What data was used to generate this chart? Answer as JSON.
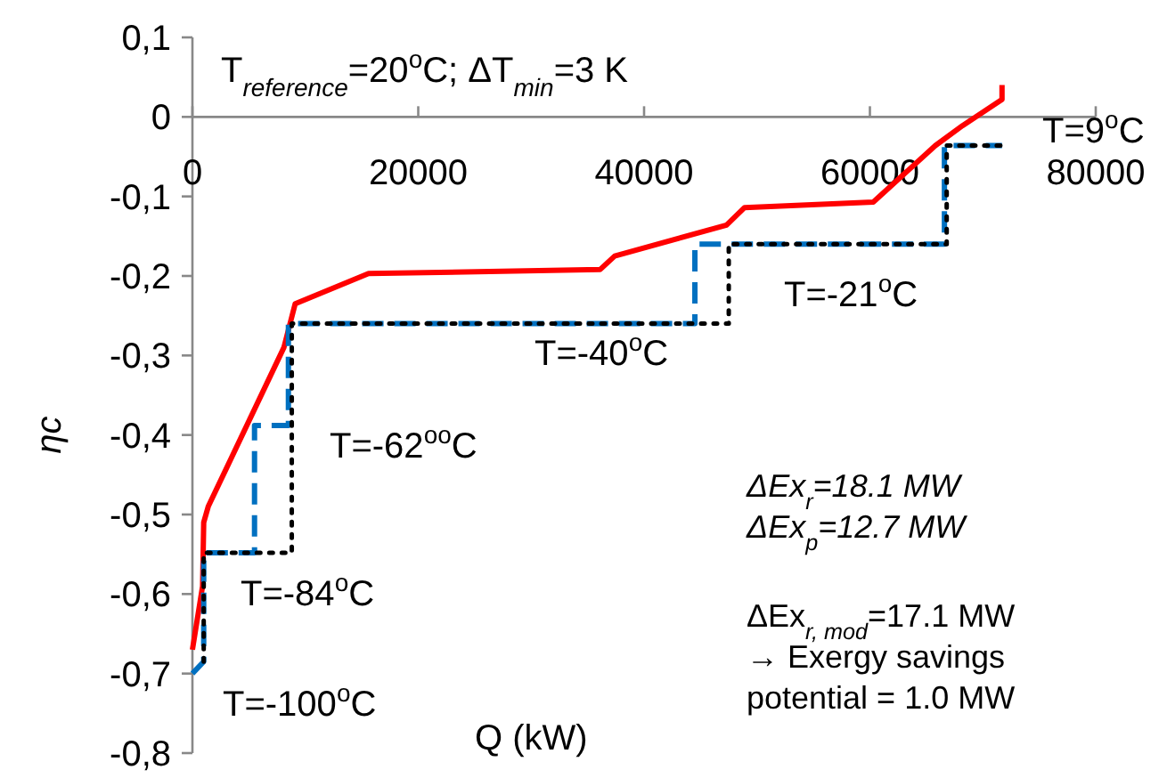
{
  "chart_data": {
    "type": "line",
    "title": "T$_{reference}$=20$^{o}$C; ΔT$_{min}$=3 K",
    "xlabel": "Q (kW)",
    "ylabel": "ηc",
    "xlim": [
      0,
      80000
    ],
    "xticks": [
      0,
      20000,
      40000,
      60000,
      80000
    ],
    "ylim": [
      -0.8,
      0.1
    ],
    "yticks": [
      {
        "value": 0.1,
        "label": "0,1"
      },
      0,
      {
        "value": -0.1,
        "label": "-0,1"
      },
      {
        "value": -0.2,
        "label": "-0,2"
      },
      {
        "value": -0.3,
        "label": "-0,3"
      },
      {
        "value": -0.4,
        "label": "-0,4"
      },
      {
        "value": -0.5,
        "label": "-0,5"
      },
      {
        "value": -0.6,
        "label": "-0,6"
      },
      {
        "value": -0.7,
        "label": "-0,7"
      },
      {
        "value": -0.8,
        "label": "-0,8"
      }
    ],
    "grid": false,
    "series": [
      {
        "color": "#ff0000",
        "line_style": "solid",
        "x": [
          0,
          900,
          1000,
          1400,
          8100,
          9100,
          15600,
          36100,
          37400,
          47300,
          48900,
          60300,
          65800,
          68200,
          71700,
          71700
        ],
        "values": [
          -0.67,
          -0.59,
          -0.51,
          -0.49,
          -0.29,
          -0.235,
          -0.197,
          -0.192,
          -0.175,
          -0.136,
          -0.114,
          -0.107,
          -0.036,
          -0.011,
          0.022,
          0.04
        ]
      },
      {
        "color": "#0070c0",
        "line_style": "dashed",
        "x": [
          0,
          1000,
          1000,
          5500,
          5500,
          8500,
          8500,
          44500,
          44500,
          66600,
          66600,
          71700
        ],
        "values": [
          -0.7,
          -0.685,
          -0.548,
          -0.548,
          -0.388,
          -0.388,
          -0.26,
          -0.26,
          -0.16,
          -0.16,
          -0.036,
          -0.036
        ]
      },
      {
        "color": "#000000",
        "line_style": "dotted",
        "x": [
          1000,
          1000,
          8100,
          8800,
          8800,
          47500,
          47500,
          66800,
          66800,
          71700
        ],
        "values": [
          -0.685,
          -0.548,
          -0.548,
          -0.548,
          -0.26,
          -0.26,
          -0.16,
          -0.16,
          -0.036,
          -0.036
        ]
      }
    ],
    "annotations": [
      "T=-100$^{o}$C",
      "T=-84$^{o}$C",
      "T=-62$^{o}$$^{o}$C",
      "T=-40$^{o}$C",
      "T=-21$^{o}$C",
      "T=9$^{o}$C",
      "ΔEx$_{r}$=18.1 MW",
      "ΔEx$_{p}$=12.7 MW",
      "ΔEx$_{r, mod}$=17.1 MW",
      "→ Exergy savings",
      "potential = 1.0 MW"
    ]
  }
}
